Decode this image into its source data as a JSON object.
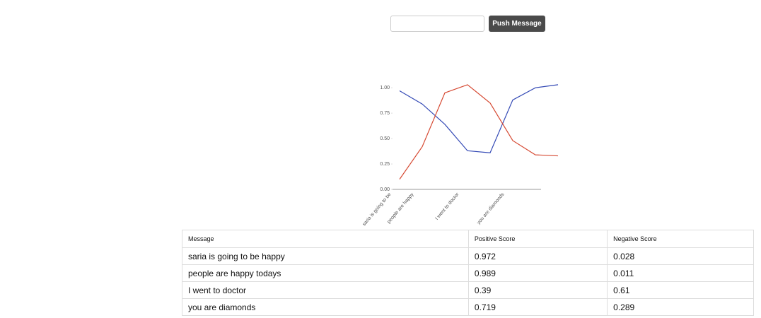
{
  "form": {
    "button": "Push Message"
  },
  "chart_data": {
    "type": "line",
    "categories": [
      "saria is going to be",
      "people are happy",
      null,
      "I went to doctor",
      null,
      "you are diamonds",
      null,
      null
    ],
    "series": [
      {
        "color": "#3349b5",
        "values": [
          0.97,
          0.84,
          0.64,
          0.38,
          0.36,
          0.88,
          1.0,
          1.03
        ]
      },
      {
        "color": "#d64a33",
        "values": [
          0.1,
          0.42,
          0.95,
          1.03,
          0.85,
          0.48,
          0.34,
          0.33
        ]
      }
    ],
    "ylim": [
      0,
      1.05
    ],
    "yticks": [
      {
        "value": 0,
        "label": "0.00"
      },
      {
        "value": 0.25,
        "label": "0.25"
      },
      {
        "value": 0.5,
        "label": "0.50"
      },
      {
        "value": 0.75,
        "label": "0.75"
      },
      {
        "value": 1,
        "label": "1.00"
      }
    ]
  },
  "table": {
    "header": [
      "Message",
      "Positive Score",
      "Negative Score"
    ],
    "rows": [
      [
        "saria is going to be happy",
        "0.972",
        "0.028"
      ],
      [
        "people are happy todays",
        "0.989",
        "0.011"
      ],
      [
        "I went to doctor",
        "0.39",
        "0.61"
      ],
      [
        "you are diamonds",
        "0.719",
        "0.289"
      ]
    ]
  }
}
